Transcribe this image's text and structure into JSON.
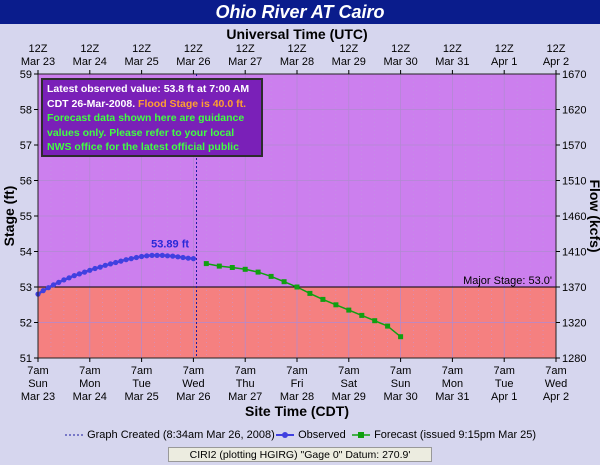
{
  "title": "Ohio River  AT Cairo",
  "chart_data": {
    "type": "line",
    "title": "Ohio River  AT Cairo",
    "top_axis_title": "Universal Time (UTC)",
    "bottom_axis_title": "Site Time (CDT)",
    "ylabel": "Stage (ft)",
    "y2label": "Flow (kcfs)",
    "ylim": [
      51,
      59
    ],
    "y_ticks": [
      "51",
      "52",
      "53",
      "54",
      "55",
      "56",
      "57",
      "58",
      "59"
    ],
    "y2_ticks": [
      "1280",
      "1320",
      "1370",
      "1410",
      "1460",
      "1510",
      "1570",
      "1620",
      "1670"
    ],
    "top_ticks": [
      {
        "time": "12Z",
        "date": "Mar 23"
      },
      {
        "time": "12Z",
        "date": "Mar 24"
      },
      {
        "time": "12Z",
        "date": "Mar 25"
      },
      {
        "time": "12Z",
        "date": "Mar 26"
      },
      {
        "time": "12Z",
        "date": "Mar 27"
      },
      {
        "time": "12Z",
        "date": "Mar 28"
      },
      {
        "time": "12Z",
        "date": "Mar 29"
      },
      {
        "time": "12Z",
        "date": "Mar 30"
      },
      {
        "time": "12Z",
        "date": "Mar 31"
      },
      {
        "time": "12Z",
        "date": "Apr 1"
      },
      {
        "time": "12Z",
        "date": "Apr 2"
      }
    ],
    "bottom_ticks": [
      {
        "time": "7am",
        "day": "Sun",
        "date": "Mar 23"
      },
      {
        "time": "7am",
        "day": "Mon",
        "date": "Mar 24"
      },
      {
        "time": "7am",
        "day": "Tue",
        "date": "Mar 25"
      },
      {
        "time": "7am",
        "day": "Wed",
        "date": "Mar 26"
      },
      {
        "time": "7am",
        "day": "Thu",
        "date": "Mar 27"
      },
      {
        "time": "7am",
        "day": "Fri",
        "date": "Mar 28"
      },
      {
        "time": "7am",
        "day": "Sat",
        "date": "Mar 29"
      },
      {
        "time": "7am",
        "day": "Sun",
        "date": "Mar 30"
      },
      {
        "time": "7am",
        "day": "Mon",
        "date": "Mar 31"
      },
      {
        "time": "7am",
        "day": "Tue",
        "date": "Apr 1"
      },
      {
        "time": "7am",
        "day": "Wed",
        "date": "Apr 2"
      }
    ],
    "major_stage": {
      "value": 53.0,
      "label": "Major Stage: 53.0'"
    },
    "flood_stage": 40.0,
    "graph_created_day": 3.06,
    "peak_label": {
      "day": 2.55,
      "value": 53.89,
      "text": "53.89 ft"
    },
    "x_unit": "days since 7am Sun Mar 23 (CDT)",
    "series": [
      {
        "name": "Observed",
        "color": "#4040e0",
        "x": [
          0,
          0.1,
          0.2,
          0.3,
          0.4,
          0.5,
          0.6,
          0.7,
          0.8,
          0.9,
          1.0,
          1.1,
          1.2,
          1.3,
          1.4,
          1.5,
          1.6,
          1.7,
          1.8,
          1.9,
          2.0,
          2.1,
          2.2,
          2.3,
          2.4,
          2.5,
          2.6,
          2.7,
          2.8,
          2.9,
          3.0
        ],
        "y": [
          52.8,
          52.9,
          52.98,
          53.06,
          53.13,
          53.2,
          53.26,
          53.32,
          53.37,
          53.42,
          53.47,
          53.52,
          53.56,
          53.61,
          53.65,
          53.69,
          53.73,
          53.77,
          53.8,
          53.83,
          53.86,
          53.88,
          53.89,
          53.89,
          53.89,
          53.88,
          53.87,
          53.85,
          53.83,
          53.81,
          53.8
        ]
      },
      {
        "name": "Forecast (issued 9:15pm Mar 25)",
        "color": "#10a010",
        "x": [
          3.25,
          3.5,
          3.75,
          4.0,
          4.25,
          4.5,
          4.75,
          5.0,
          5.25,
          5.5,
          5.75,
          6.0,
          6.25,
          6.5,
          6.75,
          7.0
        ],
        "y": [
          53.66,
          53.59,
          53.55,
          53.5,
          53.42,
          53.3,
          53.15,
          53.0,
          52.82,
          52.65,
          52.5,
          52.35,
          52.2,
          52.05,
          51.9,
          51.6
        ]
      }
    ],
    "grid": true
  },
  "info_box": {
    "observed": "Latest observed value: 53.8 ft at 7:00 AM CDT 26-Mar-2008.",
    "flood": "Flood Stage is 40.0 ft.",
    "note": "Forecast data shown here are guidance values only. Please refer to your local NWS office for the latest official public river forecasts."
  },
  "legend": {
    "created": "Graph Created (8:34am Mar 26, 2008)",
    "observed": "Observed",
    "forecast": "Forecast (issued 9:15pm Mar 25)"
  },
  "footer": "CIRI2 (plotting HGIRG)  \"Gage 0\" Datum: 270.9'",
  "colors": {
    "title_bar": "#0a1c8c",
    "plot_upper": "#cc7fee",
    "plot_lower": "#f58080",
    "frame": "#d6d6ee",
    "info_box": "#7a20b8",
    "flood_text": "#ffa030",
    "note_text": "#40ff40",
    "observed": "#4040e0",
    "forecast": "#10a010"
  }
}
